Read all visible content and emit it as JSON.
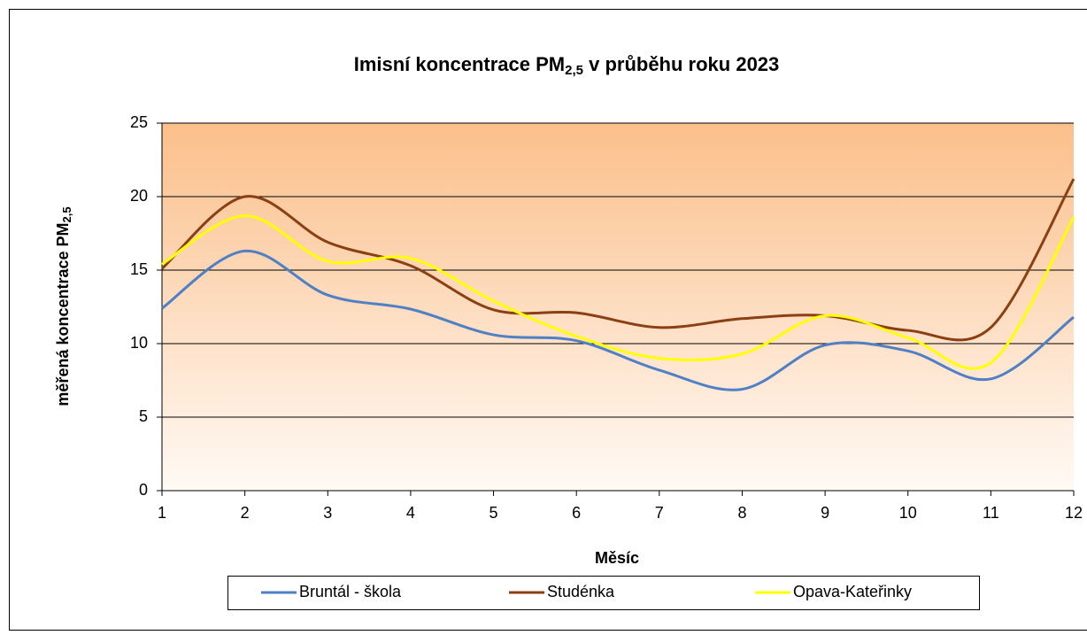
{
  "chart_data": {
    "type": "line",
    "title": [
      "Imisní koncentrace PM",
      "2,5",
      " v průběhu roku 2023"
    ],
    "x_label": "Měsíc",
    "y_label": [
      "měřená koncentrace PM",
      "2,5"
    ],
    "x": [
      1,
      2,
      3,
      4,
      5,
      6,
      7,
      8,
      9,
      10,
      11,
      12
    ],
    "xlim": [
      1,
      12
    ],
    "xticks": [
      1,
      2,
      3,
      4,
      5,
      6,
      7,
      8,
      9,
      10,
      11,
      12
    ],
    "ylim": [
      0,
      25
    ],
    "yticks": [
      0,
      5,
      10,
      15,
      20,
      25
    ],
    "grid": true,
    "smooth": true,
    "legend": "bottom",
    "series": [
      {
        "name": "Bruntál - škola",
        "color": "#4f7fc4",
        "values": [
          12.4,
          16.3,
          13.3,
          12.35,
          10.6,
          10.2,
          8.2,
          6.9,
          9.9,
          9.5,
          7.6,
          11.8
        ]
      },
      {
        "name": "Studénka",
        "color": "#8b3f12",
        "values": [
          15.1,
          20.0,
          16.9,
          15.3,
          12.3,
          12.1,
          11.1,
          11.7,
          11.9,
          10.9,
          11.1,
          21.2
        ]
      },
      {
        "name": "Opava-Kateřinky",
        "color": "#ffff00",
        "values": [
          15.4,
          18.7,
          15.6,
          15.8,
          12.9,
          10.5,
          9.0,
          9.3,
          11.9,
          10.4,
          8.7,
          18.6
        ]
      }
    ]
  }
}
